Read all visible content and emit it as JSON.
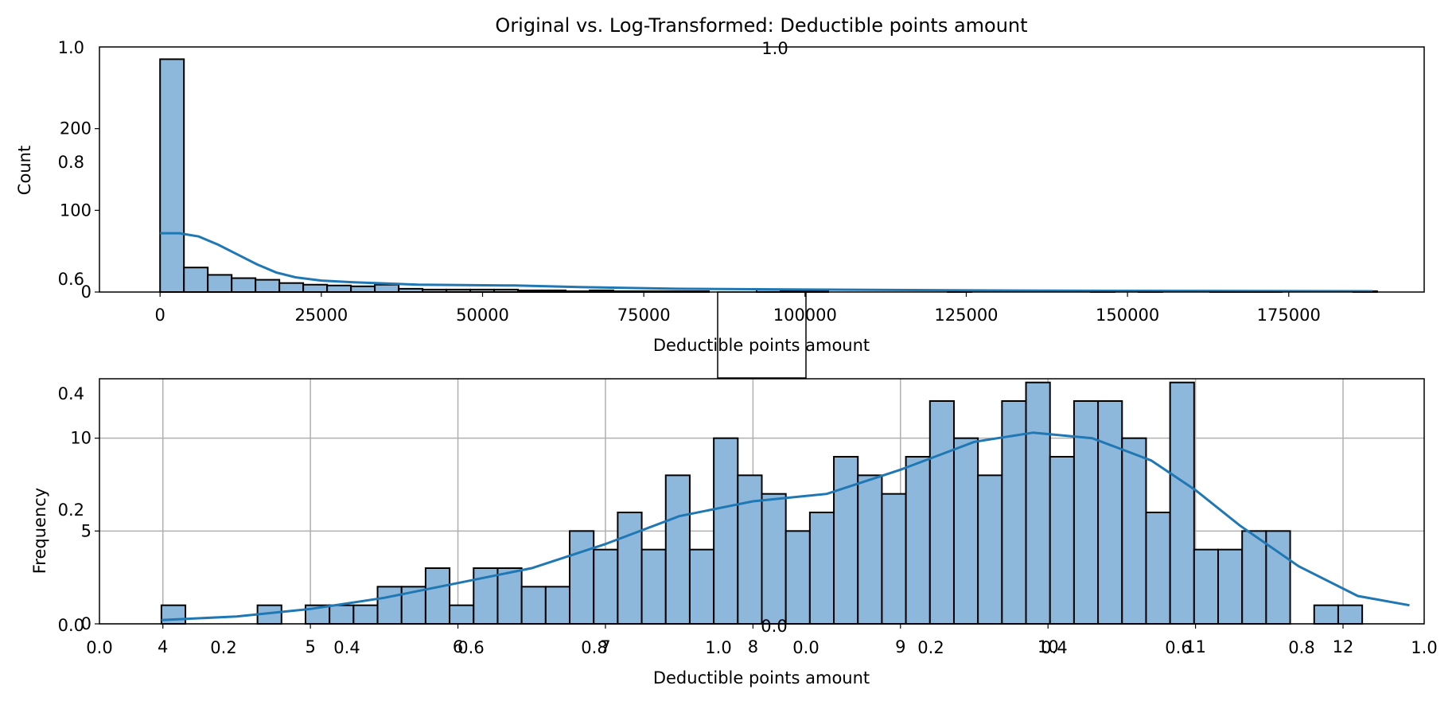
{
  "figure": {
    "title": "Original vs. Log-Transformed: Deductible points amount"
  },
  "chart_data": [
    {
      "type": "bar",
      "xlabel": "Deductible points amount",
      "ylabel": "Count",
      "xlim": [
        -9400,
        196000
      ],
      "ylim": [
        0,
        300
      ],
      "xticks": [
        0,
        25000,
        50000,
        75000,
        100000,
        125000,
        150000,
        175000
      ],
      "yticks": [
        0,
        100,
        200
      ],
      "grid": false,
      "bin_width": 3700,
      "bins_start": 0,
      "counts": [
        285,
        30,
        21,
        17,
        15,
        11,
        9,
        8,
        7,
        9,
        4,
        3,
        3,
        3,
        3,
        2,
        2,
        1,
        2,
        1,
        1,
        1,
        1,
        0,
        0,
        3,
        1,
        1,
        0,
        0,
        0,
        0,
        0,
        1,
        0,
        0,
        0,
        0,
        0,
        1,
        0,
        1,
        0,
        0,
        1,
        1,
        1,
        0,
        0,
        0,
        1
      ],
      "kde": [
        [
          0,
          72
        ],
        [
          3000,
          72
        ],
        [
          6000,
          68
        ],
        [
          9000,
          58
        ],
        [
          12000,
          46
        ],
        [
          15000,
          34
        ],
        [
          18000,
          24
        ],
        [
          21000,
          18
        ],
        [
          25000,
          14
        ],
        [
          30000,
          12
        ],
        [
          40000,
          9
        ],
        [
          55000,
          8
        ],
        [
          65000,
          6
        ],
        [
          80000,
          4
        ],
        [
          100000,
          3
        ],
        [
          125000,
          2
        ],
        [
          150000,
          1.5
        ],
        [
          188000,
          1
        ]
      ]
    },
    {
      "type": "bar",
      "xlabel": "Deductible points amount",
      "ylabel": "Frequency",
      "xlim": [
        3.57,
        12.55
      ],
      "ylim": [
        0,
        13.2
      ],
      "xticks": [
        4,
        5,
        6,
        7,
        8,
        9,
        10,
        11,
        12
      ],
      "yticks": [
        0,
        5,
        10
      ],
      "grid": true,
      "bin_width": 0.1628,
      "bins_start": 3.99,
      "counts": [
        1,
        0,
        0,
        0,
        1,
        0,
        1,
        1,
        1,
        2,
        2,
        3,
        1,
        3,
        3,
        2,
        2,
        5,
        4,
        6,
        4,
        8,
        4,
        10,
        8,
        7,
        5,
        6,
        9,
        8,
        7,
        9,
        12,
        10,
        8,
        12,
        13,
        9,
        12,
        12,
        10,
        6,
        13,
        4,
        4,
        5,
        5,
        0,
        1,
        1
      ],
      "kde": [
        [
          3.99,
          0.2
        ],
        [
          4.5,
          0.4
        ],
        [
          5.0,
          0.8
        ],
        [
          5.5,
          1.4
        ],
        [
          6.0,
          2.2
        ],
        [
          6.5,
          3.0
        ],
        [
          7.0,
          4.3
        ],
        [
          7.5,
          5.8
        ],
        [
          8.0,
          6.6
        ],
        [
          8.5,
          7.0
        ],
        [
          9.0,
          8.3
        ],
        [
          9.5,
          9.8
        ],
        [
          9.9,
          10.3
        ],
        [
          10.3,
          10.0
        ],
        [
          10.7,
          8.8
        ],
        [
          11.0,
          7.2
        ],
        [
          11.3,
          5.3
        ],
        [
          11.7,
          3.1
        ],
        [
          12.1,
          1.5
        ],
        [
          12.45,
          1.0
        ]
      ]
    }
  ],
  "inset_axes": {
    "tick_labels": {
      "top_y": [
        "0.6",
        "0.8",
        "1.0"
      ],
      "top_title_fragment": "1.0",
      "bottom_y": [
        "0.0",
        "0.2",
        "0.4"
      ],
      "bottom_x": [
        "0.0",
        "0.2",
        "0.4",
        "0.6",
        "0.8",
        "1.0"
      ],
      "middle_x": [
        "0.0",
        "0.0"
      ],
      "right_x": [
        "0.2",
        "0.4",
        "0.6",
        "0.8",
        "1.0"
      ]
    }
  },
  "colors": {
    "bar_fill": "#8db8db",
    "bar_edge": "#000000",
    "kde_line": "#1f77b4",
    "grid": "#b0b0b0"
  }
}
